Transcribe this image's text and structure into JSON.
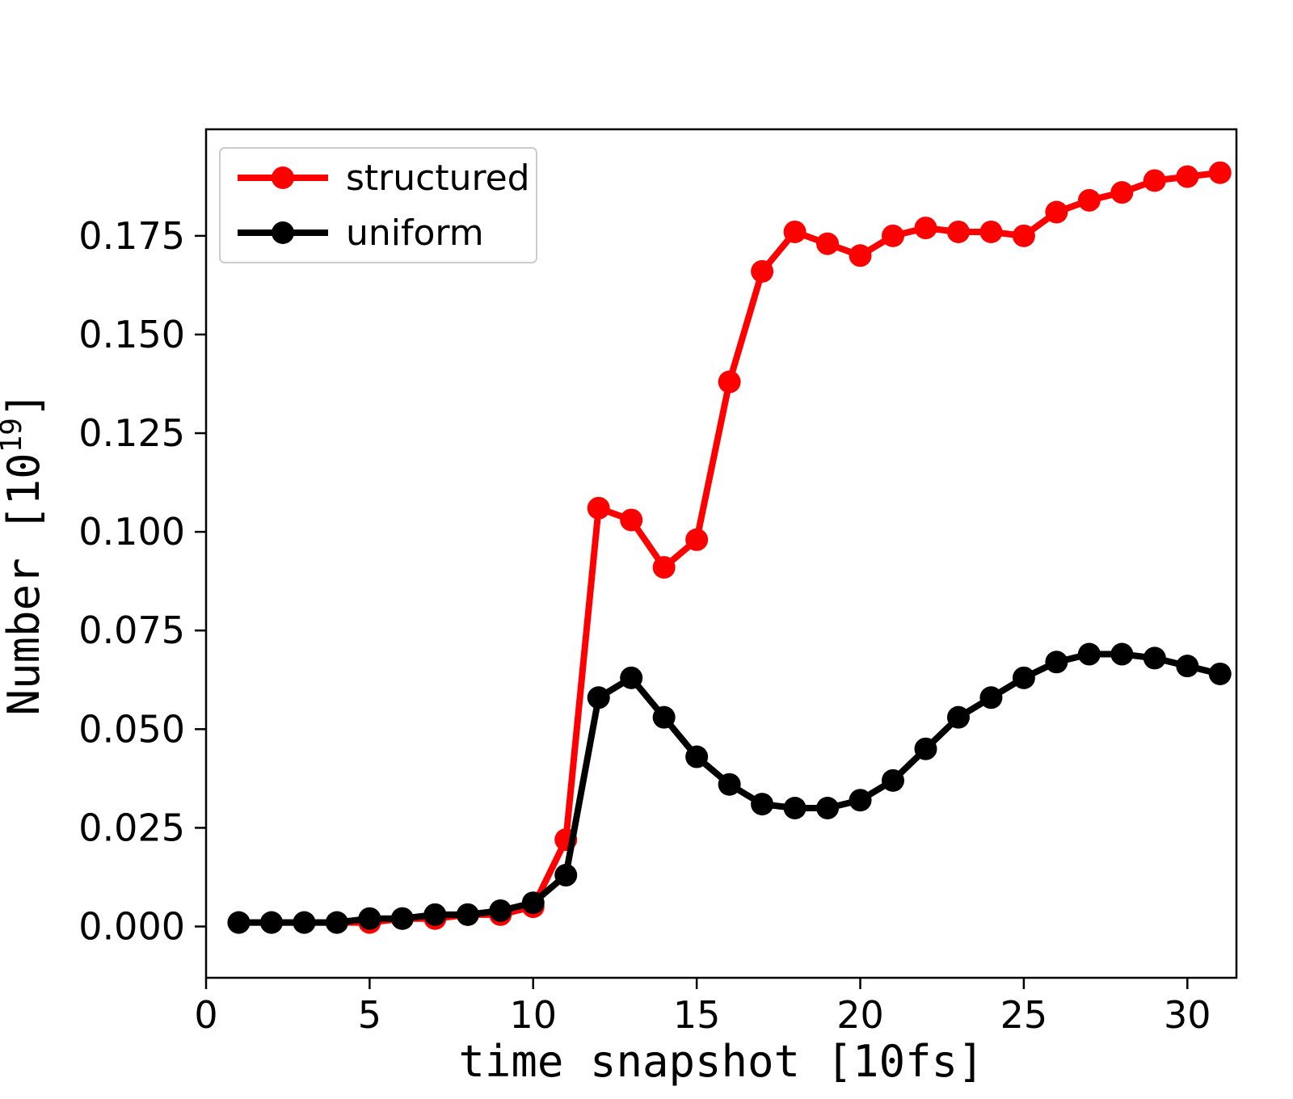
{
  "chart_data": {
    "type": "line",
    "title": "",
    "xlabel": "time snapshot [10fs]",
    "ylabel_main": "Number [10",
    "ylabel_exp": "19",
    "ylabel_close": "]",
    "xlim": [
      0,
      31.5
    ],
    "ylim": [
      -0.013,
      0.202
    ],
    "xticks": [
      0,
      5,
      10,
      15,
      20,
      25,
      30
    ],
    "yticks": [
      0.0,
      0.025,
      0.05,
      0.075,
      0.1,
      0.125,
      0.15,
      0.175
    ],
    "grid": false,
    "legend_position": "upper-left",
    "x": [
      1,
      2,
      3,
      4,
      5,
      6,
      7,
      8,
      9,
      10,
      11,
      12,
      13,
      14,
      15,
      16,
      17,
      18,
      19,
      20,
      21,
      22,
      23,
      24,
      25,
      26,
      27,
      28,
      29,
      30,
      31
    ],
    "series": [
      {
        "name": "structured",
        "color": "#ff0000",
        "values": [
          0.001,
          0.001,
          0.001,
          0.001,
          0.001,
          0.002,
          0.002,
          0.003,
          0.003,
          0.005,
          0.022,
          0.106,
          0.103,
          0.091,
          0.098,
          0.138,
          0.166,
          0.176,
          0.173,
          0.17,
          0.175,
          0.177,
          0.176,
          0.176,
          0.175,
          0.181,
          0.184,
          0.186,
          0.189,
          0.19,
          0.191
        ]
      },
      {
        "name": "uniform",
        "color": "#000000",
        "values": [
          0.001,
          0.001,
          0.001,
          0.001,
          0.002,
          0.002,
          0.003,
          0.003,
          0.004,
          0.006,
          0.013,
          0.058,
          0.063,
          0.053,
          0.043,
          0.036,
          0.031,
          0.03,
          0.03,
          0.032,
          0.037,
          0.045,
          0.053,
          0.058,
          0.063,
          0.067,
          0.069,
          0.069,
          0.068,
          0.066,
          0.064
        ]
      }
    ]
  }
}
